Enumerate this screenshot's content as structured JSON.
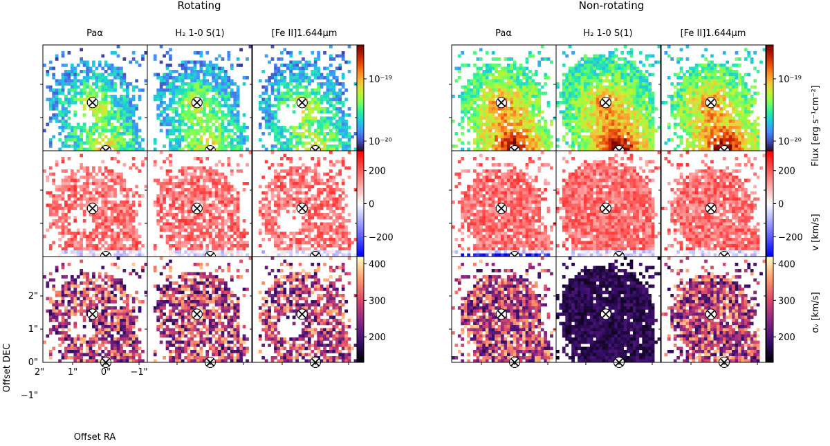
{
  "colors": {
    "flux_cmap": [
      "#30123b",
      "#4454c4",
      "#4490fe",
      "#1fc8de",
      "#29efa2",
      "#7dff56",
      "#c1f334",
      "#f1ca3a",
      "#fe922a",
      "#ea4f0d",
      "#be2102",
      "#7a0403"
    ],
    "vel_cmap": [
      "#0000ff",
      "#ffffff",
      "#ff0000"
    ],
    "disp_cmap": [
      "#000004",
      "#3b0f70",
      "#8c2981",
      "#de4968",
      "#fe9f6d",
      "#fcfdbf"
    ],
    "marker": "#ffffff"
  },
  "chart_data": {
    "type": "heatmap",
    "groups": [
      {
        "title": "Rotating",
        "panels": [
          "Paα",
          "H₂ 1-0 S(1)",
          "[Fe II]1.644μm"
        ]
      },
      {
        "title": "Non-rotating",
        "panels": [
          "Paα",
          "H₂ 1-0 S(1)",
          "[Fe II]1.644μm"
        ]
      }
    ],
    "rows": [
      {
        "quantity": "flux",
        "colorbar_label": "Flux [erg s⁻¹cm⁻²]",
        "scale": "log",
        "range": [
          7e-21,
          3.5e-19
        ],
        "ticks": [
          "10⁻¹⁹",
          "10⁻²⁰"
        ]
      },
      {
        "quantity": "velocity",
        "colorbar_label": "v [km/s]",
        "scale": "linear",
        "range": [
          -320,
          320
        ],
        "ticks": [
          "200",
          "0",
          "−200"
        ]
      },
      {
        "quantity": "dispersion",
        "colorbar_label": "σᵥ [km/s]",
        "scale": "linear",
        "range": [
          130,
          420
        ],
        "ticks": [
          "400",
          "300",
          "200"
        ]
      }
    ],
    "xlabel": "Offset RA",
    "ylabel": "Offset DEC",
    "xticks": [
      "2\"",
      "1\"",
      "0\"",
      "−1\""
    ],
    "yticks": [
      "2\"",
      "1\"",
      "0\"",
      "−1\""
    ],
    "nuclei_offsets_arcsec": [
      {
        "ra": 0.4,
        "dec": 1.45
      },
      {
        "ra": 0.0,
        "dec": 0.0
      }
    ],
    "marker": "×"
  }
}
